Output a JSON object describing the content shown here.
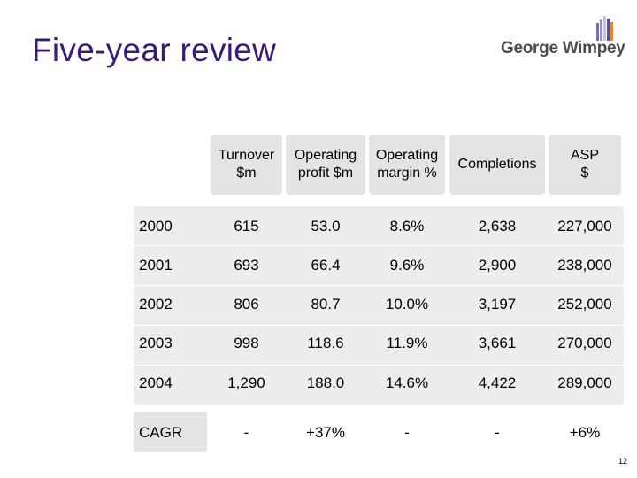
{
  "slide": {
    "title": "Five-year review",
    "logo_text": "George Wimpey",
    "slide_number": "12"
  },
  "table": {
    "headers": [
      {
        "line1": "Turnover",
        "line2": "$m"
      },
      {
        "line1": "Operating",
        "line2": "profit $m"
      },
      {
        "line1": "Operating",
        "line2": "margin %"
      },
      {
        "line1": "Completions",
        "line2": ""
      },
      {
        "line1": "ASP",
        "line2": "$"
      }
    ],
    "rows": [
      {
        "year": "2000",
        "turnover": "615",
        "profit": "53.0",
        "margin": "8.6%",
        "completions": "2,638",
        "asp": "227,000"
      },
      {
        "year": "2001",
        "turnover": "693",
        "profit": "66.4",
        "margin": "9.6%",
        "completions": "2,900",
        "asp": "238,000"
      },
      {
        "year": "2002",
        "turnover": "806",
        "profit": "80.7",
        "margin": "10.0%",
        "completions": "3,197",
        "asp": "252,000"
      },
      {
        "year": "2003",
        "turnover": "998",
        "profit": "118.6",
        "margin": "11.9%",
        "completions": "3,661",
        "asp": "270,000"
      },
      {
        "year": "2004",
        "turnover": "1,290",
        "profit": "188.0",
        "margin": "14.6%",
        "completions": "4,422",
        "asp": "289,000"
      }
    ],
    "cagr": {
      "label": "CAGR",
      "turnover": "-",
      "profit": "+37%",
      "margin": "-",
      "completions": "-",
      "asp": "+6%"
    }
  }
}
